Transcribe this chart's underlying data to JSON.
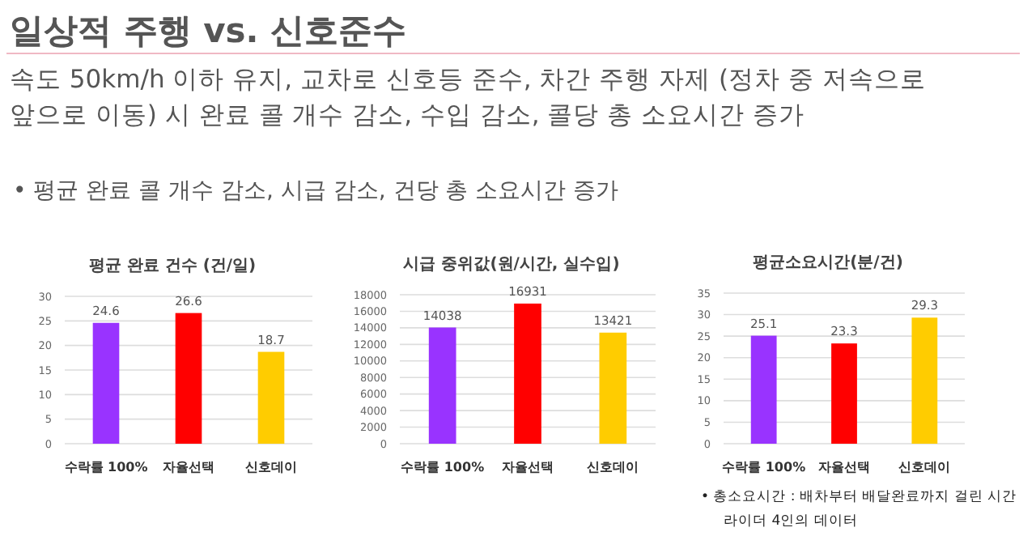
{
  "chart_data": [
    {
      "type": "other",
      "title": "일상적 주행 vs. 신호준수",
      "annotations": [
        "속도 50km/h 이하 유지, 교차로 신호등 준수, 차간 주행 자제 (정차 중 저속으로",
        "앞으로 이동) 시 완료 콜 개수 감소, 수입 감소, 콜당 총 소요시간 증가",
        "• 평균 완료 콜 개수 감소, 시급 감소, 건당 총 소요시간 증가"
      ]
    },
    {
      "type": "bar",
      "title": "평균 완료 건수 (건/일)",
      "categories": [
        "수락률 100%",
        "자율선택",
        "신호데이"
      ],
      "values": [
        24.6,
        26.6,
        18.7
      ],
      "colors": [
        "#9933ff",
        "#ff0000",
        "#ffcc00"
      ],
      "ylim": [
        0,
        30
      ],
      "yticks": [
        0,
        5,
        10,
        15,
        20,
        25,
        30
      ],
      "grid": "y",
      "data_labels": true
    },
    {
      "type": "bar",
      "title": "시급 중위값(원/시간, 실수입)",
      "categories": [
        "수락률 100%",
        "자율선택",
        "신호데이"
      ],
      "values": [
        14038,
        16931,
        13421
      ],
      "colors": [
        "#9933ff",
        "#ff0000",
        "#ffcc00"
      ],
      "ylim": [
        0,
        18000
      ],
      "yticks": [
        0,
        2000,
        4000,
        6000,
        8000,
        10000,
        12000,
        14000,
        16000,
        18000
      ],
      "grid": "y",
      "data_labels": true
    },
    {
      "type": "bar",
      "title": "평균소요시간(분/건)",
      "categories": [
        "수락률 100%",
        "자율선택",
        "신호데이"
      ],
      "values": [
        25.1,
        23.3,
        29.3
      ],
      "colors": [
        "#9933ff",
        "#ff0000",
        "#ffcc00"
      ],
      "ylim": [
        0,
        35
      ],
      "yticks": [
        0,
        5,
        10,
        15,
        20,
        25,
        30,
        35
      ],
      "grid": "y",
      "data_labels": true,
      "annotations": [
        "•  총소요시간 : 배차부터 배달완료까지 걸린 시간",
        "라이더 4인의 데이터"
      ]
    }
  ]
}
